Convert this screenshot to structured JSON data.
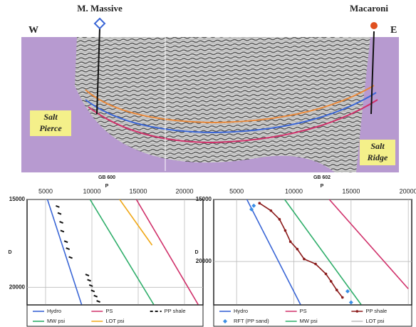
{
  "section": {
    "wells": [
      "M. Massive",
      "Macaroni"
    ],
    "directions": [
      "W",
      "E"
    ],
    "salt_labels": [
      [
        "Salt",
        "Pierce"
      ],
      [
        "Salt",
        "Ridge"
      ]
    ]
  },
  "chart_data": [
    {
      "type": "line",
      "title": "GB 600",
      "xlabel": "P",
      "ylabel": "D",
      "xlim": [
        3000,
        22000
      ],
      "xticks": [
        5000,
        10000,
        15000,
        20000
      ],
      "ylim": [
        15000,
        21000
      ],
      "yticks": [
        15000,
        20000
      ],
      "y_inverted": true,
      "grid": true,
      "series": [
        {
          "name": "Hydro",
          "color": "#3a66d6",
          "line": true,
          "x": [
            5200,
            8900
          ],
          "values": [
            15000,
            21000
          ]
        },
        {
          "name": "PS",
          "color": "#d0306a",
          "line": true,
          "x": [
            14800,
            21500
          ],
          "values": [
            15000,
            21000
          ]
        },
        {
          "name": "PP shale",
          "color": "#111111",
          "line": false,
          "marker": "dash",
          "x": [
            6300,
            6500,
            6700,
            6800,
            7200,
            7400,
            7700,
            9500,
            9700,
            9900,
            10100,
            10400,
            10700
          ],
          "values": [
            15400,
            15800,
            16300,
            16800,
            17400,
            17800,
            18300,
            19300,
            19600,
            19900,
            20200,
            20500,
            20800
          ]
        },
        {
          "name": "MW psi",
          "color": "#2fae6a",
          "line": true,
          "x": [
            9800,
            16700
          ],
          "values": [
            15000,
            21000
          ]
        },
        {
          "name": "LOT psi",
          "color": "#f0a818",
          "line": true,
          "x": [
            13000,
            16500
          ],
          "values": [
            15000,
            17600
          ]
        }
      ]
    },
    {
      "type": "line",
      "title": "GB 602",
      "xlabel": "P",
      "ylabel": "D",
      "xlim": [
        3000,
        20300
      ],
      "xticks": [
        5000,
        10000,
        15000,
        20000
      ],
      "ylim": [
        15000,
        23500
      ],
      "yticks": [
        15000,
        20000
      ],
      "y_inverted": true,
      "grid": true,
      "series": [
        {
          "name": "Hydro",
          "color": "#3a66d6",
          "line": true,
          "x": [
            5900,
            10600
          ],
          "values": [
            15000,
            23500
          ]
        },
        {
          "name": "PS",
          "color": "#d0306a",
          "line": true,
          "x": [
            13100,
            20000
          ],
          "values": [
            15000,
            22200
          ]
        },
        {
          "name": "PP shale",
          "color": "#8a1a1a",
          "line": true,
          "marker": "dot",
          "x": [
            7000,
            8000,
            8750,
            9250,
            9700,
            10300,
            10900,
            11900,
            12800,
            13250,
            13750,
            14250
          ],
          "values": [
            15300,
            15900,
            16600,
            17500,
            18400,
            19000,
            19800,
            20200,
            21000,
            21600,
            22300,
            22900
          ]
        },
        {
          "name": "RFT (PP sand)",
          "color": "#3a8ee6",
          "line": false,
          "marker": "diamond",
          "x": [
            6300,
            6500,
            14700,
            15000
          ],
          "values": [
            15800,
            15500,
            22400,
            23300
          ]
        },
        {
          "name": "MW psi",
          "color": "#2fae6a",
          "line": true,
          "x": [
            9200,
            15900
          ],
          "values": [
            15000,
            23500
          ]
        },
        {
          "name": "LOT psi",
          "color": "#bbbbbb",
          "line": true,
          "x": [],
          "values": []
        }
      ]
    }
  ]
}
